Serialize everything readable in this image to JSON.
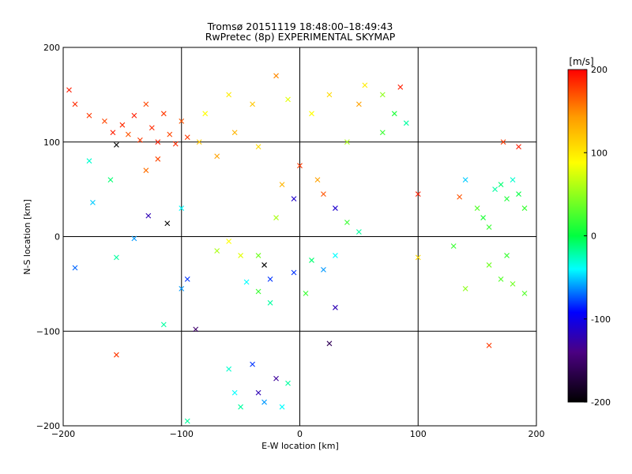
{
  "title_line1": "Tromsø 20151119 18:48:00–18:49:43",
  "title_line2": "RwPretec (8p) EXPERIMENTAL SKYMAP",
  "colorbar": {
    "unit": "[m/s]",
    "min": -200,
    "max": 200,
    "ticks": [
      "200",
      "100",
      "0",
      "-100",
      "-200"
    ],
    "tick_values": [
      200,
      100,
      0,
      -100,
      -200
    ],
    "colors": [
      "#000000",
      "#4b0082",
      "#0000ff",
      "#00ffff",
      "#00ff40",
      "#ffff00",
      "#ff9900",
      "#ff0000"
    ]
  },
  "chart_data": {
    "type": "scatter",
    "title": "Tromsø 20151119 18:48:00–18:49:43",
    "subtitle": "RwPretec (8p) EXPERIMENTAL SKYMAP",
    "xlabel": "E-W location [km]",
    "ylabel": "N-S location [km]",
    "xlim": [
      -200,
      200
    ],
    "ylim": [
      -200,
      200
    ],
    "xticks": [
      -200,
      -100,
      0,
      100,
      200
    ],
    "yticks": [
      -200,
      -100,
      0,
      100,
      200
    ],
    "xtick_labels": [
      "−200",
      "−100",
      "0",
      "100",
      "200"
    ],
    "ytick_labels": [
      "−200",
      "−100",
      "0",
      "100",
      "200"
    ],
    "grid": true,
    "marker_styles": [
      "dot",
      "x"
    ],
    "color_variable": "velocity [m/s]",
    "points": [
      {
        "x": -195,
        "y": 155,
        "v": 190,
        "m": "x"
      },
      {
        "x": -190,
        "y": 140,
        "v": 185,
        "m": "x"
      },
      {
        "x": -178,
        "y": 128,
        "v": 180,
        "m": "x"
      },
      {
        "x": -165,
        "y": 122,
        "v": 175,
        "m": "x"
      },
      {
        "x": -158,
        "y": 110,
        "v": 190,
        "m": "x"
      },
      {
        "x": -150,
        "y": 118,
        "v": 185,
        "m": "x"
      },
      {
        "x": -145,
        "y": 108,
        "v": 170,
        "m": "x"
      },
      {
        "x": -140,
        "y": 128,
        "v": 190,
        "m": "x"
      },
      {
        "x": -135,
        "y": 102,
        "v": 180,
        "m": "x"
      },
      {
        "x": -130,
        "y": 140,
        "v": 175,
        "m": "x"
      },
      {
        "x": -125,
        "y": 115,
        "v": 185,
        "m": "x"
      },
      {
        "x": -120,
        "y": 100,
        "v": 190,
        "m": "x"
      },
      {
        "x": -115,
        "y": 130,
        "v": 180,
        "m": "x"
      },
      {
        "x": -110,
        "y": 108,
        "v": 175,
        "m": "x"
      },
      {
        "x": -105,
        "y": 98,
        "v": 185,
        "m": "x"
      },
      {
        "x": -100,
        "y": 122,
        "v": 170,
        "m": "x"
      },
      {
        "x": -95,
        "y": 105,
        "v": 180,
        "m": "x"
      },
      {
        "x": -155,
        "y": 97,
        "v": -200,
        "m": "x"
      },
      {
        "x": -130,
        "y": 70,
        "v": 160,
        "m": "x"
      },
      {
        "x": -120,
        "y": 82,
        "v": 175,
        "m": "x"
      },
      {
        "x": -112,
        "y": 14,
        "v": -200,
        "m": "x"
      },
      {
        "x": -128,
        "y": 22,
        "v": -120,
        "m": "x"
      },
      {
        "x": -140,
        "y": -2,
        "v": -60,
        "m": "x"
      },
      {
        "x": -155,
        "y": -22,
        "v": -20,
        "m": "x"
      },
      {
        "x": -190,
        "y": -33,
        "v": -70,
        "m": "x"
      },
      {
        "x": -178,
        "y": 80,
        "v": -30,
        "m": "x"
      },
      {
        "x": -160,
        "y": 60,
        "v": -10,
        "m": "x"
      },
      {
        "x": -175,
        "y": 36,
        "v": -50,
        "m": "x"
      },
      {
        "x": -100,
        "y": 30,
        "v": -40,
        "m": "x"
      },
      {
        "x": -100,
        "y": -55,
        "v": -60,
        "m": "x"
      },
      {
        "x": -95,
        "y": -45,
        "v": -80,
        "m": "x"
      },
      {
        "x": -155,
        "y": -125,
        "v": 180,
        "m": "x"
      },
      {
        "x": -115,
        "y": -93,
        "v": -20,
        "m": "x"
      },
      {
        "x": -88,
        "y": -98,
        "v": -150,
        "m": "x"
      },
      {
        "x": -95,
        "y": -195,
        "v": -20,
        "m": "x"
      },
      {
        "x": -60,
        "y": -140,
        "v": -30,
        "m": "x"
      },
      {
        "x": -55,
        "y": -165,
        "v": -40,
        "m": "x"
      },
      {
        "x": -50,
        "y": -180,
        "v": -20,
        "m": "x"
      },
      {
        "x": -40,
        "y": -135,
        "v": -80,
        "m": "x"
      },
      {
        "x": -35,
        "y": -165,
        "v": -120,
        "m": "x"
      },
      {
        "x": -30,
        "y": -175,
        "v": -60,
        "m": "x"
      },
      {
        "x": -20,
        "y": -150,
        "v": -130,
        "m": "x"
      },
      {
        "x": -15,
        "y": -180,
        "v": -40,
        "m": "x"
      },
      {
        "x": -10,
        "y": -155,
        "v": -20,
        "m": "x"
      },
      {
        "x": 25,
        "y": -113,
        "v": -160,
        "m": "x"
      },
      {
        "x": -30,
        "y": -30,
        "v": -200,
        "m": "x"
      },
      {
        "x": -25,
        "y": -45,
        "v": -80,
        "m": "x"
      },
      {
        "x": -45,
        "y": -48,
        "v": -40,
        "m": "x"
      },
      {
        "x": 30,
        "y": -75,
        "v": -120,
        "m": "x"
      },
      {
        "x": -35,
        "y": -58,
        "v": 20,
        "m": "x"
      },
      {
        "x": -50,
        "y": -20,
        "v": 80,
        "m": "x"
      },
      {
        "x": -60,
        "y": -5,
        "v": 90,
        "m": "x"
      },
      {
        "x": -20,
        "y": 20,
        "v": 60,
        "m": "x"
      },
      {
        "x": -5,
        "y": 40,
        "v": -110,
        "m": "x"
      },
      {
        "x": -15,
        "y": 55,
        "v": 130,
        "m": "x"
      },
      {
        "x": 15,
        "y": 60,
        "v": 140,
        "m": "x"
      },
      {
        "x": 20,
        "y": 45,
        "v": 170,
        "m": "x"
      },
      {
        "x": 0,
        "y": 75,
        "v": 180,
        "m": "x"
      },
      {
        "x": 30,
        "y": 30,
        "v": -110,
        "m": "x"
      },
      {
        "x": 40,
        "y": 15,
        "v": 20,
        "m": "x"
      },
      {
        "x": 50,
        "y": 5,
        "v": -20,
        "m": "x"
      },
      {
        "x": 30,
        "y": -20,
        "v": -40,
        "m": "x"
      },
      {
        "x": 20,
        "y": -35,
        "v": -60,
        "m": "x"
      },
      {
        "x": -5,
        "y": -38,
        "v": -80,
        "m": "x"
      },
      {
        "x": 10,
        "y": -25,
        "v": -10,
        "m": "x"
      },
      {
        "x": -60,
        "y": 150,
        "v": 100,
        "m": "x"
      },
      {
        "x": -40,
        "y": 140,
        "v": 120,
        "m": "x"
      },
      {
        "x": -20,
        "y": 170,
        "v": 150,
        "m": "x"
      },
      {
        "x": -10,
        "y": 145,
        "v": 80,
        "m": "x"
      },
      {
        "x": 10,
        "y": 130,
        "v": 90,
        "m": "x"
      },
      {
        "x": 25,
        "y": 150,
        "v": 110,
        "m": "x"
      },
      {
        "x": 50,
        "y": 140,
        "v": 140,
        "m": "x"
      },
      {
        "x": 55,
        "y": 160,
        "v": 100,
        "m": "x"
      },
      {
        "x": 70,
        "y": 150,
        "v": 50,
        "m": "x"
      },
      {
        "x": 85,
        "y": 158,
        "v": 190,
        "m": "x"
      },
      {
        "x": 80,
        "y": 130,
        "v": 10,
        "m": "x"
      },
      {
        "x": 90,
        "y": 120,
        "v": -20,
        "m": "x"
      },
      {
        "x": 70,
        "y": 110,
        "v": 20,
        "m": "x"
      },
      {
        "x": 40,
        "y": 100,
        "v": 60,
        "m": "x"
      },
      {
        "x": -35,
        "y": 95,
        "v": 110,
        "m": "x"
      },
      {
        "x": -55,
        "y": 110,
        "v": 130,
        "m": "x"
      },
      {
        "x": -80,
        "y": 130,
        "v": 90,
        "m": "x"
      },
      {
        "x": -85,
        "y": 100,
        "v": 120,
        "m": "x"
      },
      {
        "x": -70,
        "y": 85,
        "v": 140,
        "m": "x"
      },
      {
        "x": 100,
        "y": 45,
        "v": 190,
        "m": "x"
      },
      {
        "x": 135,
        "y": 42,
        "v": 170,
        "m": "x"
      },
      {
        "x": 140,
        "y": 60,
        "v": -50,
        "m": "x"
      },
      {
        "x": 150,
        "y": 30,
        "v": 30,
        "m": "x"
      },
      {
        "x": 155,
        "y": 20,
        "v": 10,
        "m": "x"
      },
      {
        "x": 160,
        "y": 10,
        "v": 20,
        "m": "x"
      },
      {
        "x": 165,
        "y": 50,
        "v": -20,
        "m": "x"
      },
      {
        "x": 170,
        "y": 55,
        "v": -10,
        "m": "x"
      },
      {
        "x": 175,
        "y": 40,
        "v": 10,
        "m": "x"
      },
      {
        "x": 180,
        "y": 60,
        "v": -30,
        "m": "x"
      },
      {
        "x": 185,
        "y": 45,
        "v": 0,
        "m": "x"
      },
      {
        "x": 190,
        "y": 30,
        "v": 20,
        "m": "x"
      },
      {
        "x": 172,
        "y": 100,
        "v": 180,
        "m": "x"
      },
      {
        "x": 185,
        "y": 95,
        "v": 190,
        "m": "x"
      },
      {
        "x": 160,
        "y": -115,
        "v": 180,
        "m": "x"
      },
      {
        "x": 100,
        "y": -22,
        "v": 110,
        "m": "x"
      },
      {
        "x": 130,
        "y": -10,
        "v": 20,
        "m": "x"
      },
      {
        "x": 160,
        "y": -30,
        "v": 40,
        "m": "x"
      },
      {
        "x": 170,
        "y": -45,
        "v": 30,
        "m": "x"
      },
      {
        "x": 180,
        "y": -50,
        "v": 40,
        "m": "x"
      },
      {
        "x": 175,
        "y": -20,
        "v": 20,
        "m": "x"
      },
      {
        "x": 140,
        "y": -55,
        "v": 50,
        "m": "x"
      },
      {
        "x": 190,
        "y": -60,
        "v": 30,
        "m": "x"
      },
      {
        "x": -70,
        "y": -15,
        "v": 60,
        "m": "x"
      },
      {
        "x": -35,
        "y": -20,
        "v": 40,
        "m": "x"
      },
      {
        "x": 5,
        "y": -60,
        "v": 20,
        "m": "x"
      },
      {
        "x": -25,
        "y": -70,
        "v": -20,
        "m": "x"
      }
    ]
  }
}
